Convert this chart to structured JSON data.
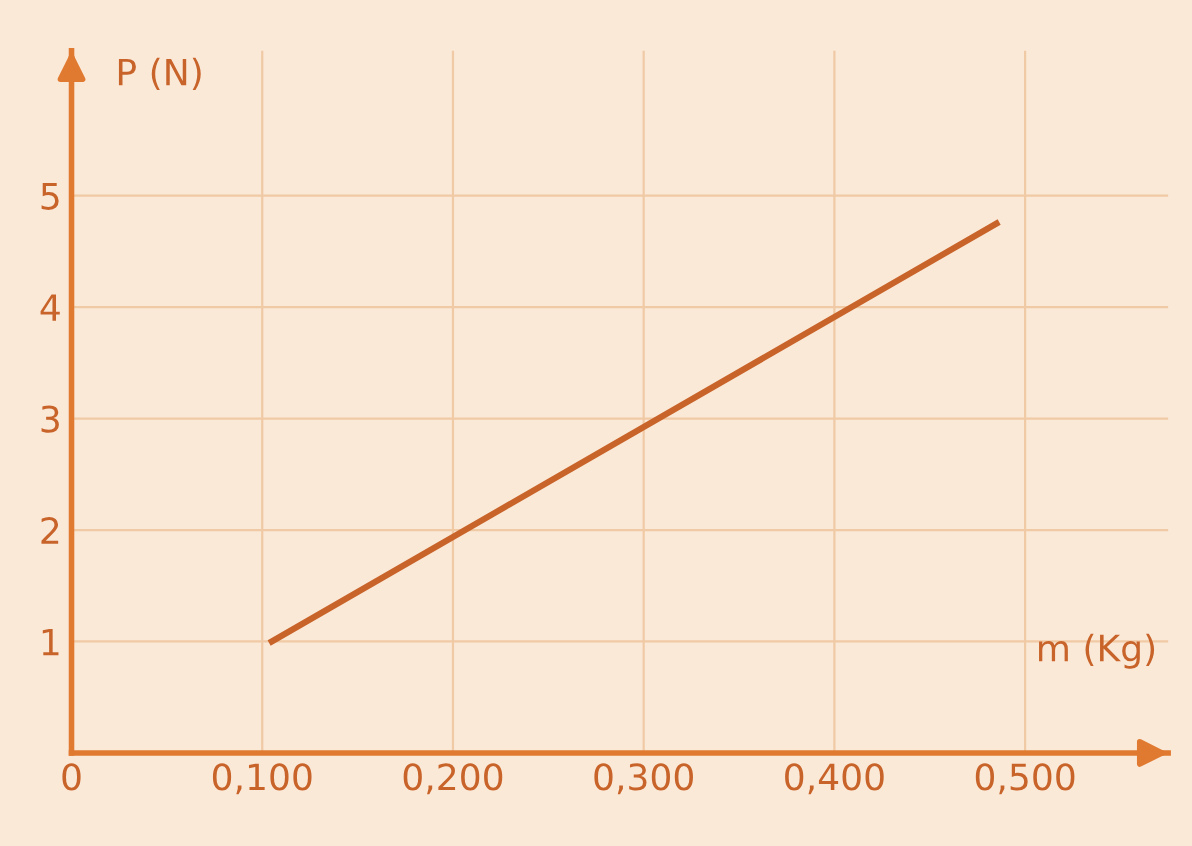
{
  "chart_data": {
    "type": "line",
    "xlabel": "m (Kg)",
    "ylabel": "P (N)",
    "x": [
      0.105,
      0.485
    ],
    "series": [
      {
        "color": "#c8642a",
        "values": [
          1.0,
          4.75
        ]
      }
    ],
    "xlim": [
      0,
      0.575
    ],
    "ylim": [
      0,
      6.3
    ],
    "xticks": [
      {
        "value": 0,
        "label": "0"
      },
      {
        "value": 0.1,
        "label": "0,100"
      },
      {
        "value": 0.2,
        "label": "0,200"
      },
      {
        "value": 0.3,
        "label": "0,300"
      },
      {
        "value": 0.4,
        "label": "0,400"
      },
      {
        "value": 0.5,
        "label": "0,500"
      }
    ],
    "yticks": [
      1,
      2,
      3,
      4,
      5
    ],
    "grid": true,
    "line_style": "solid",
    "marker": "none"
  }
}
